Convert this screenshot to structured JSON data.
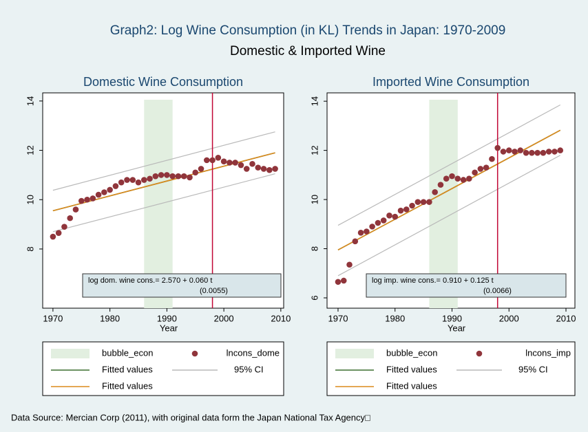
{
  "title": "Graph2: Log Wine Consumption (in KL) Trends in Japan: 1970-2009",
  "subtitle": "Domestic & Imported Wine",
  "note": "Data Source: Mercian Corp (2011), with original data form the Japan National Tax Agency□",
  "chart_data": [
    {
      "type": "scatter",
      "title": "Domestic Wine Consumption",
      "xlabel": "Year",
      "xlim": [
        1968.2,
        2010.5
      ],
      "xticks": [
        1970,
        1980,
        1990,
        2000,
        2010
      ],
      "ylim": [
        5.6,
        14.33
      ],
      "yticks": [
        8,
        10,
        12,
        14
      ],
      "x": [
        1970,
        1971,
        1972,
        1973,
        1974,
        1975,
        1976,
        1977,
        1978,
        1979,
        1980,
        1981,
        1982,
        1983,
        1984,
        1985,
        1986,
        1987,
        1988,
        1989,
        1990,
        1991,
        1992,
        1993,
        1994,
        1995,
        1996,
        1997,
        1998,
        1999,
        2000,
        2001,
        2002,
        2003,
        2004,
        2005,
        2006,
        2007,
        2008,
        2009
      ],
      "series": [
        {
          "name": "lncons_dome",
          "color": "#90353b",
          "values": [
            8.5,
            8.65,
            8.9,
            9.25,
            9.6,
            9.95,
            10.0,
            10.05,
            10.2,
            10.3,
            10.4,
            10.55,
            10.7,
            10.8,
            10.8,
            10.7,
            10.8,
            10.85,
            10.95,
            11.0,
            11.0,
            10.95,
            10.95,
            10.95,
            10.9,
            11.1,
            11.25,
            11.6,
            11.6,
            11.7,
            11.55,
            11.5,
            11.5,
            11.4,
            11.25,
            11.45,
            11.3,
            11.25,
            11.2,
            11.25
          ]
        }
      ],
      "shade": {
        "name": "bubble_econ",
        "color": "#e2efe0",
        "x": [
          1986,
          1991
        ]
      },
      "vline": {
        "value": 1998,
        "color": "#c10534"
      },
      "fit_x": [
        1970,
        2009
      ],
      "fits": [
        {
          "name": "Fitted values",
          "color": "#3b6e2e",
          "values": [
            9.55,
            11.9
          ]
        },
        {
          "name": "Fitted values",
          "color": "#dc8a1c",
          "values": [
            9.55,
            11.9
          ]
        }
      ],
      "ci": {
        "name": "95% CI",
        "color": "#b9b9b9",
        "upper": [
          10.38,
          12.75
        ],
        "lower": [
          8.7,
          11.05
        ]
      },
      "annotation": [
        "log dom. wine cons.= 2.570 + 0.060 t",
        "(0.0055)"
      ]
    },
    {
      "type": "scatter",
      "title": "Imported Wine Consumption",
      "xlabel": "Year",
      "xlim": [
        1968.07,
        2011.57
      ],
      "xticks": [
        1970,
        1980,
        1990,
        2000,
        2010
      ],
      "ylim": [
        5.58,
        14.34
      ],
      "yticks": [
        6,
        8,
        10,
        12,
        14
      ],
      "x": [
        1970,
        1971,
        1972,
        1973,
        1974,
        1975,
        1976,
        1977,
        1978,
        1979,
        1980,
        1981,
        1982,
        1983,
        1984,
        1985,
        1986,
        1987,
        1988,
        1989,
        1990,
        1991,
        1992,
        1993,
        1994,
        1995,
        1996,
        1997,
        1998,
        1999,
        2000,
        2001,
        2002,
        2003,
        2004,
        2005,
        2006,
        2007,
        2008,
        2009
      ],
      "series": [
        {
          "name": "lncons_imp",
          "color": "#90353b",
          "values": [
            6.65,
            6.7,
            7.35,
            8.3,
            8.65,
            8.7,
            8.9,
            9.05,
            9.15,
            9.35,
            9.3,
            9.55,
            9.6,
            9.75,
            9.9,
            9.9,
            9.9,
            10.3,
            10.6,
            10.85,
            10.95,
            10.85,
            10.8,
            10.85,
            11.1,
            11.25,
            11.3,
            11.65,
            12.1,
            11.95,
            12.0,
            11.95,
            12.0,
            11.9,
            11.9,
            11.9,
            11.9,
            11.95,
            11.95,
            12.0
          ]
        }
      ],
      "shade": {
        "name": "bubble_econ",
        "color": "#e2efe0",
        "x": [
          1986,
          1991
        ]
      },
      "vline": {
        "value": 1998,
        "color": "#c10534"
      },
      "fit_x": [
        1970,
        2009
      ],
      "fits": [
        {
          "name": "Fitted values",
          "color": "#3b6e2e",
          "values": [
            7.95,
            12.82
          ]
        },
        {
          "name": "Fitted values",
          "color": "#dc8a1c",
          "values": [
            7.95,
            12.82
          ]
        }
      ],
      "ci": {
        "name": "95% CI",
        "color": "#b9b9b9",
        "upper": [
          8.95,
          13.85
        ],
        "lower": [
          6.9,
          11.8
        ]
      },
      "annotation": [
        "log imp. wine cons.= 0.910 + 0.125 t",
        "(0.0066)"
      ]
    }
  ]
}
